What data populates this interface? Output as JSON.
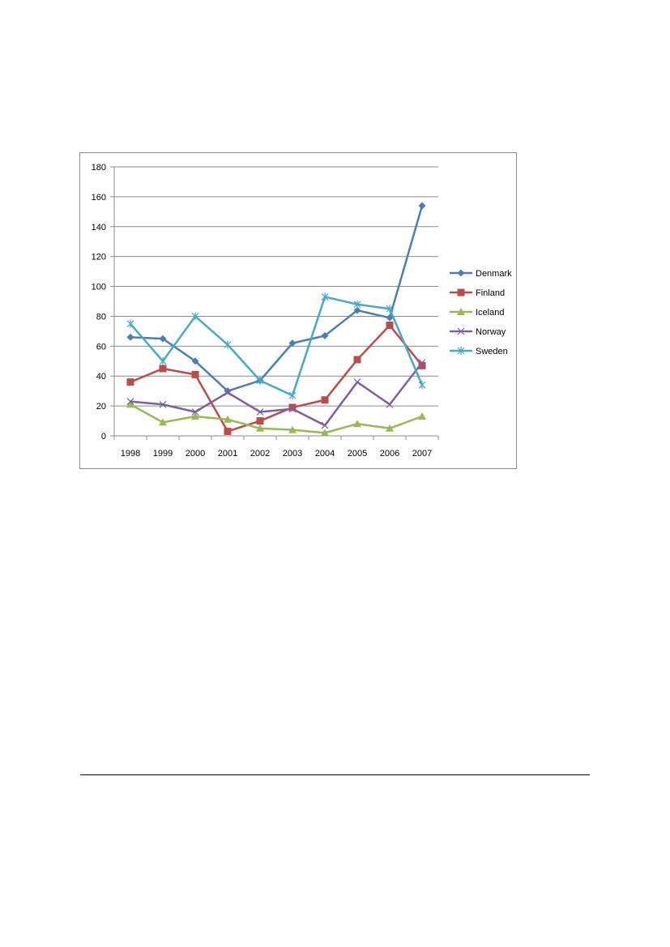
{
  "chart_data": {
    "type": "line",
    "title": "",
    "xlabel": "",
    "ylabel": "",
    "ylim": [
      0,
      180
    ],
    "yticks": [
      0,
      20,
      40,
      60,
      80,
      100,
      120,
      140,
      160,
      180
    ],
    "grid": "horizontal",
    "legend_position": "right",
    "categories": [
      "1998",
      "1999",
      "2000",
      "2001",
      "2002",
      "2003",
      "2004",
      "2005",
      "2006",
      "2007"
    ],
    "series": [
      {
        "name": "Denmark",
        "color": "#4a7ebb",
        "marker": "diamond",
        "values": [
          66,
          65,
          50,
          30,
          37,
          62,
          67,
          84,
          79,
          154
        ]
      },
      {
        "name": "Finland",
        "color": "#be4b48",
        "marker": "square",
        "values": [
          36,
          45,
          41,
          3,
          10,
          19,
          24,
          51,
          74,
          47
        ]
      },
      {
        "name": "Iceland",
        "color": "#98b954",
        "marker": "triangle",
        "values": [
          21,
          9,
          13,
          11,
          5,
          4,
          2,
          8,
          5,
          13
        ]
      },
      {
        "name": "Norway",
        "color": "#7d60a0",
        "marker": "x",
        "values": [
          23,
          21,
          16,
          29,
          16,
          18,
          7,
          36,
          21,
          49
        ]
      },
      {
        "name": "Sweden",
        "color": "#46aac5",
        "marker": "star",
        "values": [
          75,
          50,
          80,
          61,
          37,
          27,
          93,
          88,
          85,
          34
        ]
      }
    ]
  }
}
